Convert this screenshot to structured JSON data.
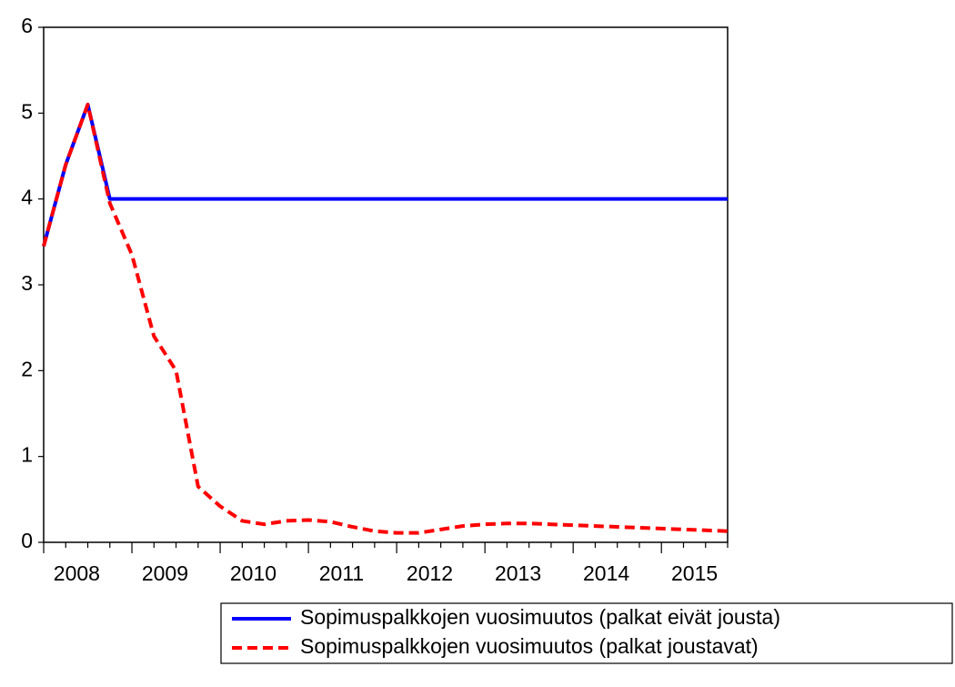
{
  "chart_data": {
    "type": "line",
    "categories": [
      "2008",
      null,
      null,
      null,
      "2009",
      null,
      null,
      null,
      "2010",
      null,
      null,
      null,
      "2011",
      null,
      null,
      null,
      "2012",
      null,
      null,
      null,
      "2013",
      null,
      null,
      null,
      "2014",
      null,
      null,
      null,
      "2015",
      null,
      null,
      null
    ],
    "series": [
      {
        "name": "Sopimuspalkkojen vuosimuutos (palkat eivät jousta)",
        "color": "#0000ff",
        "dash": false,
        "values": [
          3.45,
          4.4,
          5.1,
          4.0,
          4.0,
          4.0,
          4.0,
          4.0,
          4.0,
          4.0,
          4.0,
          4.0,
          4.0,
          4.0,
          4.0,
          4.0,
          4.0,
          4.0,
          4.0,
          4.0,
          4.0,
          4.0,
          4.0,
          4.0,
          4.0,
          4.0,
          4.0,
          4.0,
          4.0,
          4.0,
          4.0,
          4.0
        ]
      },
      {
        "name": "Sopimuspalkkojen vuosimuutos (palkat joustavat)",
        "color": "#ff0000",
        "dash": true,
        "values": [
          3.45,
          4.4,
          5.1,
          3.95,
          3.35,
          2.4,
          2.0,
          0.65,
          0.42,
          0.25,
          0.21,
          0.25,
          0.26,
          0.24,
          0.18,
          0.13,
          0.11,
          0.11,
          0.15,
          0.19,
          0.21,
          0.22,
          0.22,
          0.21,
          0.2,
          0.19,
          0.18,
          0.17,
          0.16,
          0.15,
          0.14,
          0.13
        ]
      }
    ],
    "ylim": [
      0,
      6
    ],
    "yticks": [
      0,
      1,
      2,
      3,
      4,
      5,
      6
    ],
    "legend": "bottom-right"
  }
}
